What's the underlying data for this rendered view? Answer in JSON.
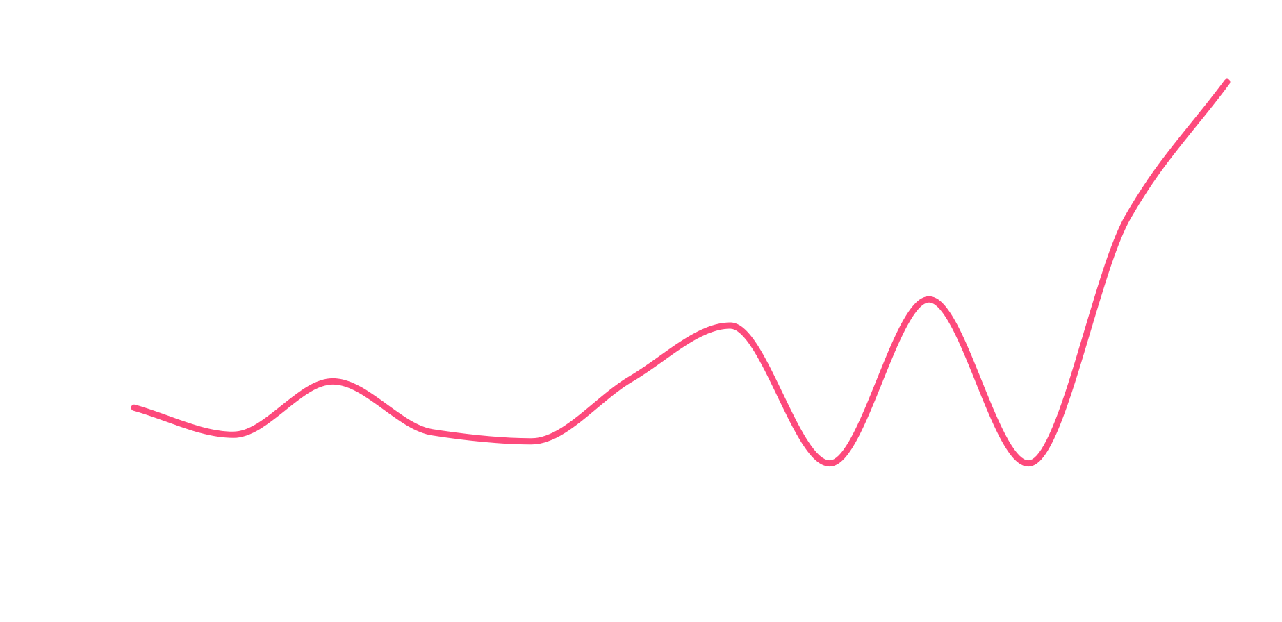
{
  "chart_data": {
    "type": "line",
    "categories": [
      null,
      null,
      null,
      null,
      null,
      null,
      null,
      null,
      null,
      null,
      null,
      null
    ],
    "series": [
      {
        "color": "#fd4a7c",
        "values": [
          20.6,
          14,
          27,
          14.6,
          12.4,
          27.6,
          40.6,
          7,
          47,
          7,
          67,
          100
        ]
      }
    ],
    "ylim": [
      0,
      100
    ],
    "curve": "smooth"
  }
}
